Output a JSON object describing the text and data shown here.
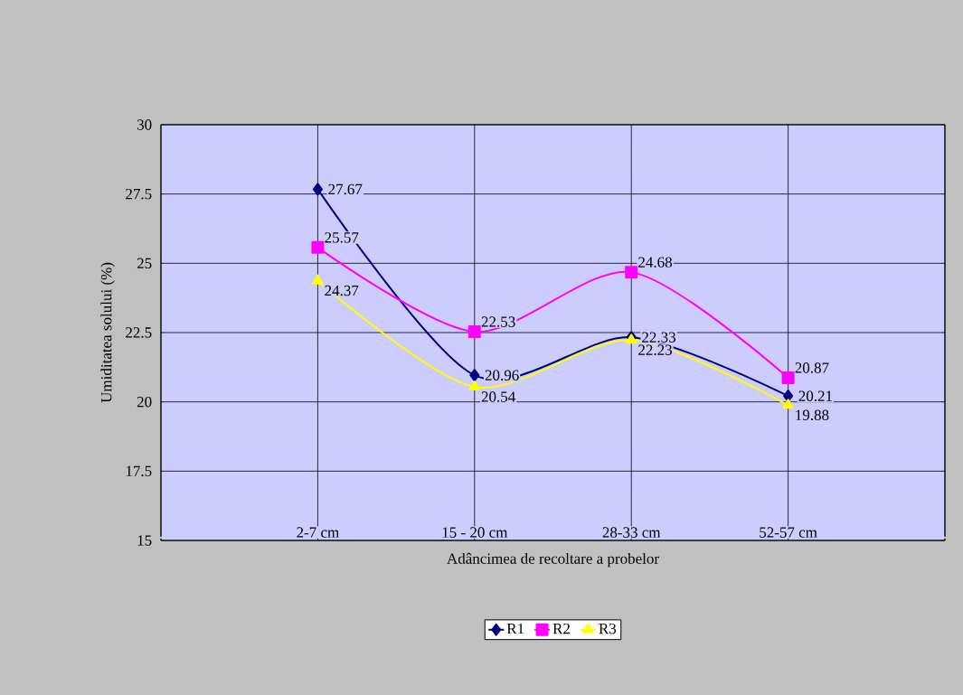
{
  "chart_data": {
    "type": "line",
    "xlabel": "Adâncimea de recoltare a probelor",
    "ylabel": "Umiditatea solului (%)",
    "categories": [
      "2-7 cm",
      "15 - 20 cm",
      "28-33 cm",
      "52-57 cm"
    ],
    "series": [
      {
        "name": "R1",
        "color": "#000080",
        "marker": "diamond",
        "values": [
          27.67,
          20.96,
          22.33,
          20.21
        ]
      },
      {
        "name": "R2",
        "color": "#ff00ff",
        "marker": "square",
        "values": [
          25.57,
          22.53,
          24.68,
          20.87
        ]
      },
      {
        "name": "R3",
        "color": "#ffff00",
        "marker": "triangle",
        "values": [
          24.37,
          20.54,
          22.23,
          19.88
        ]
      }
    ],
    "ylim": [
      15,
      30
    ],
    "yticks": [
      15,
      17.5,
      20,
      22.5,
      25,
      27.5,
      30
    ],
    "grid": true,
    "legend": "bottom",
    "data_labels": true,
    "line_style": "solid"
  }
}
